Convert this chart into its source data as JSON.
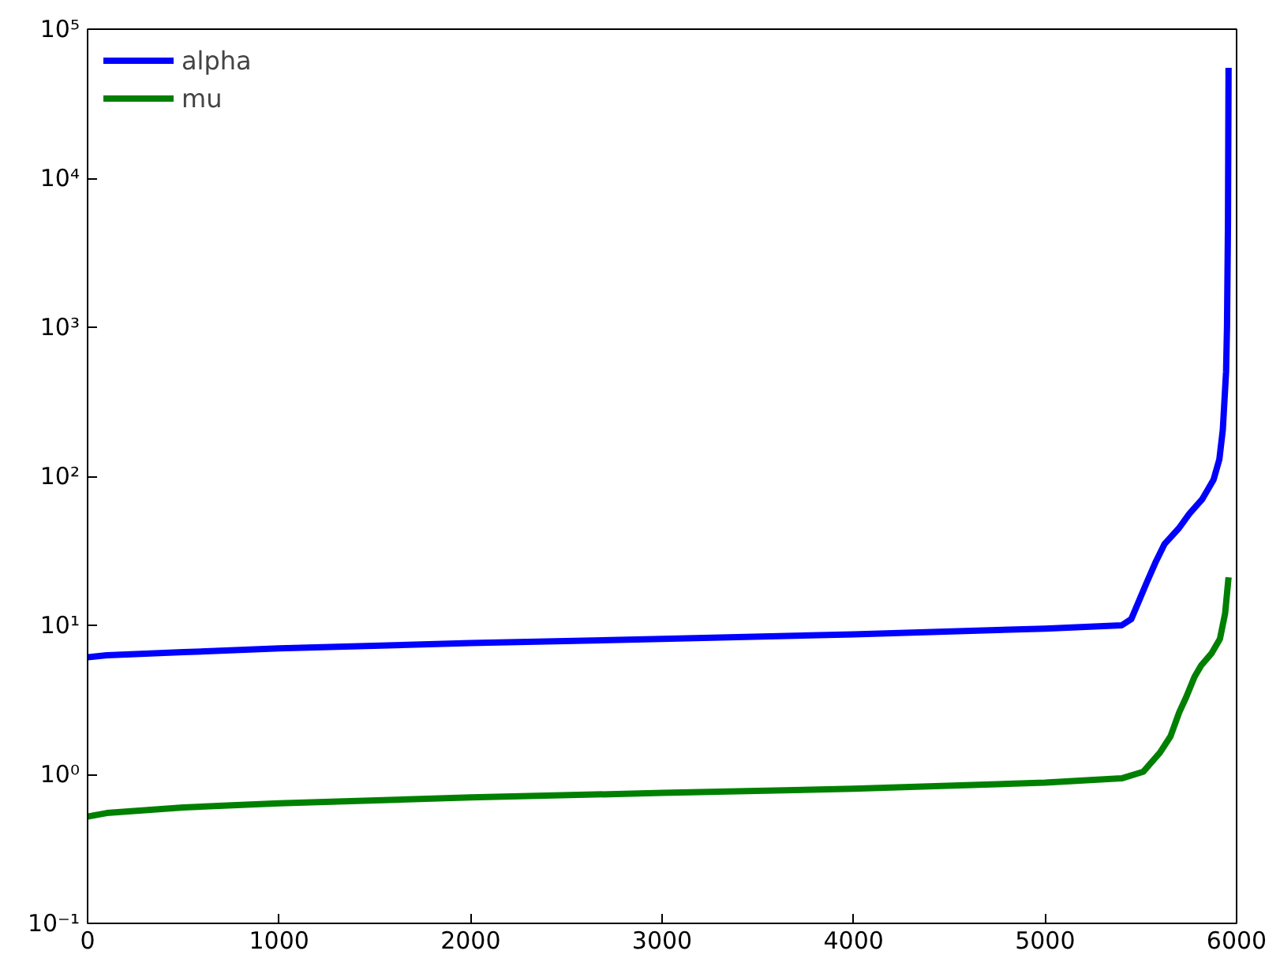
{
  "chart_data": {
    "type": "line",
    "log": "y",
    "grid": false,
    "legend": "top left",
    "line_style": "solid",
    "xlim": [
      0,
      6000
    ],
    "ylim": [
      0.1,
      100000
    ],
    "xticks": [
      0,
      1000,
      2000,
      3000,
      4000,
      5000,
      6000
    ],
    "yticks": [
      {
        "value": 0.1,
        "label": "10⁻¹"
      },
      {
        "value": 1,
        "label": "10⁰"
      },
      {
        "value": 10,
        "label": "10¹"
      },
      {
        "value": 100,
        "label": "10²"
      },
      {
        "value": 1000,
        "label": "10³"
      },
      {
        "value": 10000,
        "label": "10⁴"
      },
      {
        "value": 100000,
        "label": "10⁵"
      }
    ],
    "series": [
      {
        "name": "alpha",
        "color": "#0000ff",
        "x": [
          0,
          100,
          500,
          1000,
          2000,
          3000,
          4000,
          5000,
          5400,
          5450,
          5528,
          5580,
          5623,
          5700,
          5753,
          5820,
          5880,
          5910,
          5928,
          5945,
          5950,
          5955,
          5958
        ],
        "values": [
          6.1,
          6.3,
          6.6,
          7.0,
          7.6,
          8.1,
          8.7,
          9.5,
          10.0,
          11,
          19,
          27,
          35,
          45,
          56,
          70,
          95,
          130,
          205,
          500,
          1020,
          5000,
          55000
        ]
      },
      {
        "name": "mu",
        "color": "#008000",
        "x": [
          0,
          100,
          500,
          1000,
          2000,
          3000,
          4000,
          5000,
          5400,
          5512,
          5600,
          5655,
          5700,
          5737,
          5780,
          5816,
          5870,
          5913,
          5940,
          5958
        ],
        "values": [
          0.52,
          0.55,
          0.6,
          0.64,
          0.7,
          0.75,
          0.8,
          0.88,
          0.94,
          1.04,
          1.4,
          1.8,
          2.6,
          3.3,
          4.5,
          5.4,
          6.5,
          8.1,
          12,
          21
        ]
      }
    ]
  }
}
